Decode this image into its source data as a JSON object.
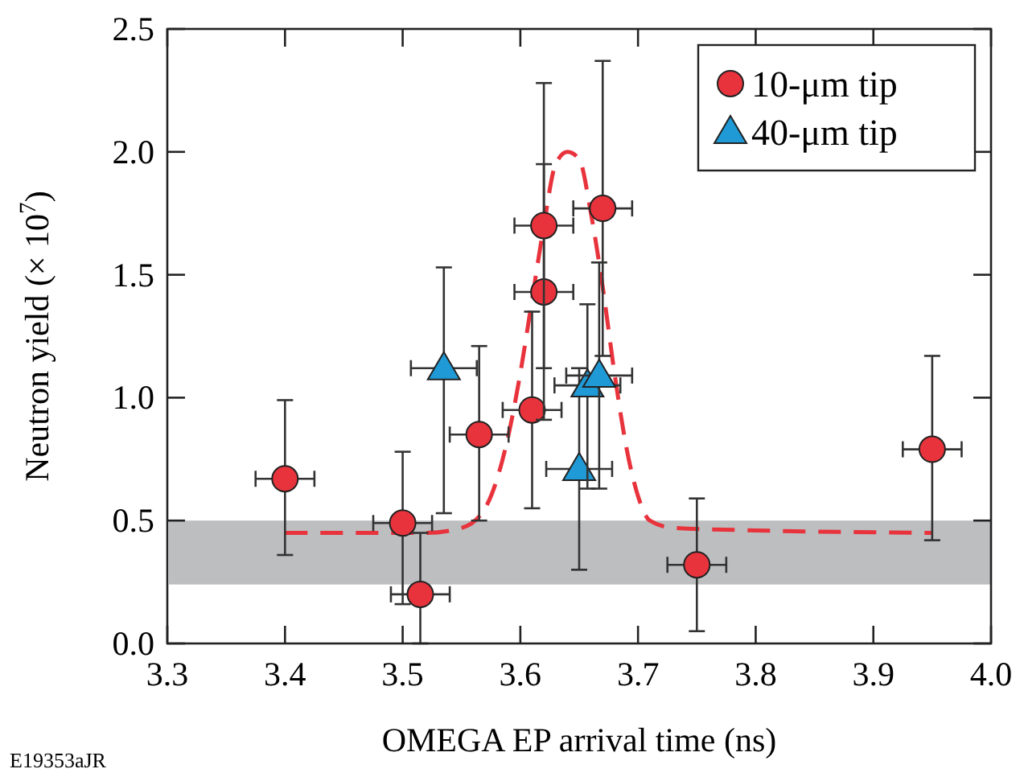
{
  "chart_data": {
    "type": "scatter",
    "xlabel": "OMEGA EP arrival time (ns)",
    "ylabel": "Neutron yield (× 10$^{7}$)",
    "xlim": [
      3.3,
      4.0
    ],
    "xticks": [
      {
        "value": 3.3,
        "label": "3.3"
      },
      {
        "value": 3.4,
        "label": "3.4"
      },
      {
        "value": 3.5,
        "label": "3.5"
      },
      {
        "value": 3.6,
        "label": "3.6"
      },
      {
        "value": 3.7,
        "label": "3.7"
      },
      {
        "value": 3.8,
        "label": "3.8"
      },
      {
        "value": 3.9,
        "label": "3.9"
      },
      {
        "value": 4.0,
        "label": "4.0"
      }
    ],
    "ylim": [
      0,
      2.5
    ],
    "yticks": [
      {
        "value": 0,
        "label": "0.0"
      },
      {
        "value": 0.5,
        "label": "0.5"
      },
      {
        "value": 1.0,
        "label": "1.0"
      },
      {
        "value": 1.5,
        "label": "1.5"
      },
      {
        "value": 2.0,
        "label": "2.0"
      },
      {
        "value": 2.5,
        "label": "2.5"
      }
    ],
    "grid": false,
    "legend": "top right",
    "bands": [
      {
        "axis": "y",
        "from": 0.24,
        "to": 0.5,
        "color": "#bcbec0"
      }
    ],
    "series": [
      {
        "type": "line",
        "color": "#e8333c",
        "line_style": "dashed",
        "x": [
          3.4,
          3.52,
          3.55,
          3.57,
          3.59,
          3.6,
          3.61,
          3.62,
          3.63,
          3.64,
          3.65,
          3.66,
          3.67,
          3.68,
          3.69,
          3.7,
          3.71,
          3.73,
          3.8,
          3.95
        ],
        "values": [
          0.45,
          0.45,
          0.47,
          0.55,
          0.85,
          1.1,
          1.4,
          1.7,
          1.95,
          2.0,
          1.97,
          1.75,
          1.45,
          1.1,
          0.8,
          0.6,
          0.5,
          0.47,
          0.46,
          0.45
        ]
      },
      {
        "name": "10-μm tip",
        "color": "#e8333c",
        "marker": "circle",
        "x": [
          3.4,
          3.5,
          3.515,
          3.565,
          3.61,
          3.62,
          3.62,
          3.67,
          3.75,
          3.95
        ],
        "values": [
          0.67,
          0.49,
          0.2,
          0.85,
          0.95,
          1.43,
          1.7,
          1.77,
          0.32,
          0.79
        ],
        "errors": [
          [
            0.36,
            0.99
          ],
          [
            0.16,
            0.78
          ],
          [
            0,
            0.45
          ],
          [
            0.5,
            1.21
          ],
          [
            0.55,
            1.35
          ],
          [
            0.91,
            1.95
          ],
          [
            1.12,
            2.28
          ],
          [
            1.17,
            2.37
          ],
          [
            0.05,
            0.59
          ],
          [
            0.42,
            1.17
          ]
        ],
        "xerrors": [
          0.025,
          0.025,
          0.025,
          0.025,
          0.025,
          0.025,
          0.025,
          0.025,
          0.025,
          0.025
        ]
      },
      {
        "name": "40-μm tip",
        "color": "#1f9ad6",
        "marker": "triangle",
        "x": [
          3.535,
          3.65,
          3.657,
          3.667
        ],
        "values": [
          1.12,
          0.71,
          1.05,
          1.09
        ],
        "errors": [
          [
            0.53,
            1.53
          ],
          [
            0.3,
            1.12
          ],
          [
            0.63,
            1.38
          ],
          [
            0.63,
            1.55
          ]
        ],
        "xerrors": [
          0.028,
          0.028,
          0.028,
          0.028
        ]
      }
    ],
    "annotations": [
      "E19353aJR"
    ]
  }
}
